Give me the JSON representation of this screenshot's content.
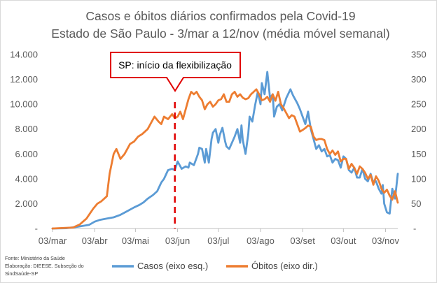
{
  "chart_data": {
    "type": "line",
    "title": "Casos e óbitos diários confirmados pela Covid-19",
    "subtitle": "Estado de São Paulo - 3/mar a 12/nov (média móvel semanal)",
    "x_tick_labels": [
      "03/mar",
      "03/abr",
      "03/mai",
      "03/jun",
      "03/jul",
      "03/ago",
      "03/set",
      "03/out",
      "03/nov"
    ],
    "x_range": [
      "03/mar",
      "12/nov"
    ],
    "left_axis": {
      "ylim": [
        0,
        14000
      ],
      "tick_labels": [
        "-",
        "2.000",
        "4.000",
        "6.000",
        "8.000",
        "10.000",
        "12.000",
        "14.000"
      ]
    },
    "right_axis": {
      "ylim": [
        0,
        350
      ],
      "tick_labels": [
        "-",
        "50",
        "100",
        "150",
        "200",
        "250",
        "300",
        "350"
      ]
    },
    "grid": false,
    "legend_position": "bottom",
    "series": [
      {
        "name": "Casos (eixo esq.)",
        "axis": "left",
        "color": "#5b9bd5",
        "x_days": [
          0,
          10,
          16,
          22,
          27,
          31,
          35,
          40,
          45,
          50,
          55,
          60,
          64,
          67,
          70,
          74,
          77,
          80,
          82,
          85,
          88,
          90,
          92,
          95,
          98,
          100,
          101,
          104,
          107,
          108,
          110,
          112,
          113,
          115,
          117,
          118,
          120,
          122,
          123,
          125,
          127,
          128,
          130,
          132,
          134,
          136,
          138,
          139,
          140,
          142,
          144,
          145,
          147,
          149,
          151,
          153,
          154,
          156,
          158,
          160,
          162,
          163,
          165,
          167,
          169,
          172,
          175,
          177,
          179,
          180,
          182,
          184,
          186,
          188,
          190,
          192,
          194,
          196,
          198,
          200,
          202,
          204,
          206,
          208,
          210,
          212,
          214,
          216,
          218,
          220,
          222,
          224,
          226,
          228,
          230,
          232,
          234,
          236,
          238,
          240,
          242,
          243,
          244,
          246,
          248,
          250,
          252,
          254
        ],
        "values": [
          0,
          20,
          100,
          200,
          300,
          550,
          700,
          800,
          900,
          1100,
          1400,
          1700,
          1900,
          2100,
          2400,
          2700,
          3000,
          3700,
          4000,
          4700,
          4800,
          4700,
          5400,
          4800,
          5000,
          4900,
          5300,
          5100,
          6000,
          6500,
          6400,
          5300,
          6400,
          5300,
          7200,
          7700,
          8000,
          6900,
          7500,
          8100,
          7000,
          6600,
          6400,
          6900,
          7400,
          8000,
          6900,
          8300,
          7100,
          6000,
          7600,
          9000,
          8600,
          9900,
          11000,
          10000,
          11700,
          10800,
          12600,
          10500,
          10800,
          9000,
          9800,
          10000,
          9500,
          10500,
          11200,
          10700,
          10300,
          10100,
          9600,
          9000,
          8400,
          9400,
          8000,
          7200,
          6400,
          6700,
          6200,
          6400,
          5800,
          5900,
          5300,
          5600,
          5500,
          4900,
          5800,
          5600,
          4700,
          4500,
          4900,
          4100,
          4100,
          4800,
          4000,
          3800,
          4400,
          3700,
          3800,
          3200,
          2800,
          3500,
          2000,
          1300,
          1200,
          3200,
          2400,
          4400
        ]
      },
      {
        "name": "Óbitos (eixo dir.)",
        "axis": "right",
        "color": "#ed7d31",
        "x_days": [
          0,
          15,
          20,
          25,
          30,
          33,
          36,
          40,
          42,
          45,
          47,
          50,
          53,
          55,
          57,
          60,
          63,
          66,
          70,
          73,
          75,
          78,
          80,
          82,
          85,
          88,
          90,
          92,
          94,
          96,
          98,
          100,
          102,
          104,
          106,
          108,
          110,
          112,
          114,
          116,
          118,
          120,
          122,
          124,
          126,
          128,
          130,
          132,
          134,
          136,
          138,
          140,
          142,
          144,
          146,
          148,
          150,
          152,
          154,
          156,
          158,
          160,
          162,
          164,
          166,
          168,
          170,
          172,
          174,
          176,
          178,
          180,
          182,
          184,
          186,
          188,
          190,
          192,
          194,
          196,
          198,
          200,
          202,
          204,
          206,
          208,
          210,
          212,
          214,
          216,
          218,
          220,
          222,
          224,
          226,
          228,
          230,
          232,
          234,
          236,
          238,
          240,
          242,
          244,
          246,
          248,
          250,
          252,
          254
        ],
        "values": [
          0,
          2,
          8,
          20,
          40,
          50,
          55,
          65,
          110,
          150,
          160,
          140,
          150,
          160,
          170,
          175,
          185,
          190,
          200,
          215,
          225,
          215,
          210,
          225,
          220,
          230,
          222,
          225,
          235,
          220,
          240,
          260,
          275,
          270,
          275,
          265,
          258,
          240,
          250,
          255,
          245,
          250,
          258,
          260,
          270,
          255,
          255,
          270,
          275,
          265,
          270,
          263,
          260,
          262,
          270,
          275,
          280,
          270,
          258,
          260,
          265,
          255,
          270,
          257,
          275,
          250,
          242,
          232,
          222,
          228,
          225,
          210,
          195,
          198,
          202,
          207,
          205,
          185,
          178,
          180,
          180,
          178,
          160,
          150,
          157,
          148,
          155,
          135,
          140,
          140,
          120,
          130,
          122,
          110,
          125,
          120,
          112,
          100,
          108,
          88,
          105,
          96,
          80,
          72,
          78,
          66,
          58,
          75,
          52
        ]
      }
    ],
    "annotations": [
      {
        "type": "callout",
        "text": "SP: início da flexibilização",
        "at_x": "01/jun",
        "style": "red dashed vertical line"
      }
    ],
    "footnote": [
      "Fonte: Ministério da Saúde",
      "Elaboração: DIEESE. Subseção do",
      "SindSaúde-SP"
    ]
  }
}
